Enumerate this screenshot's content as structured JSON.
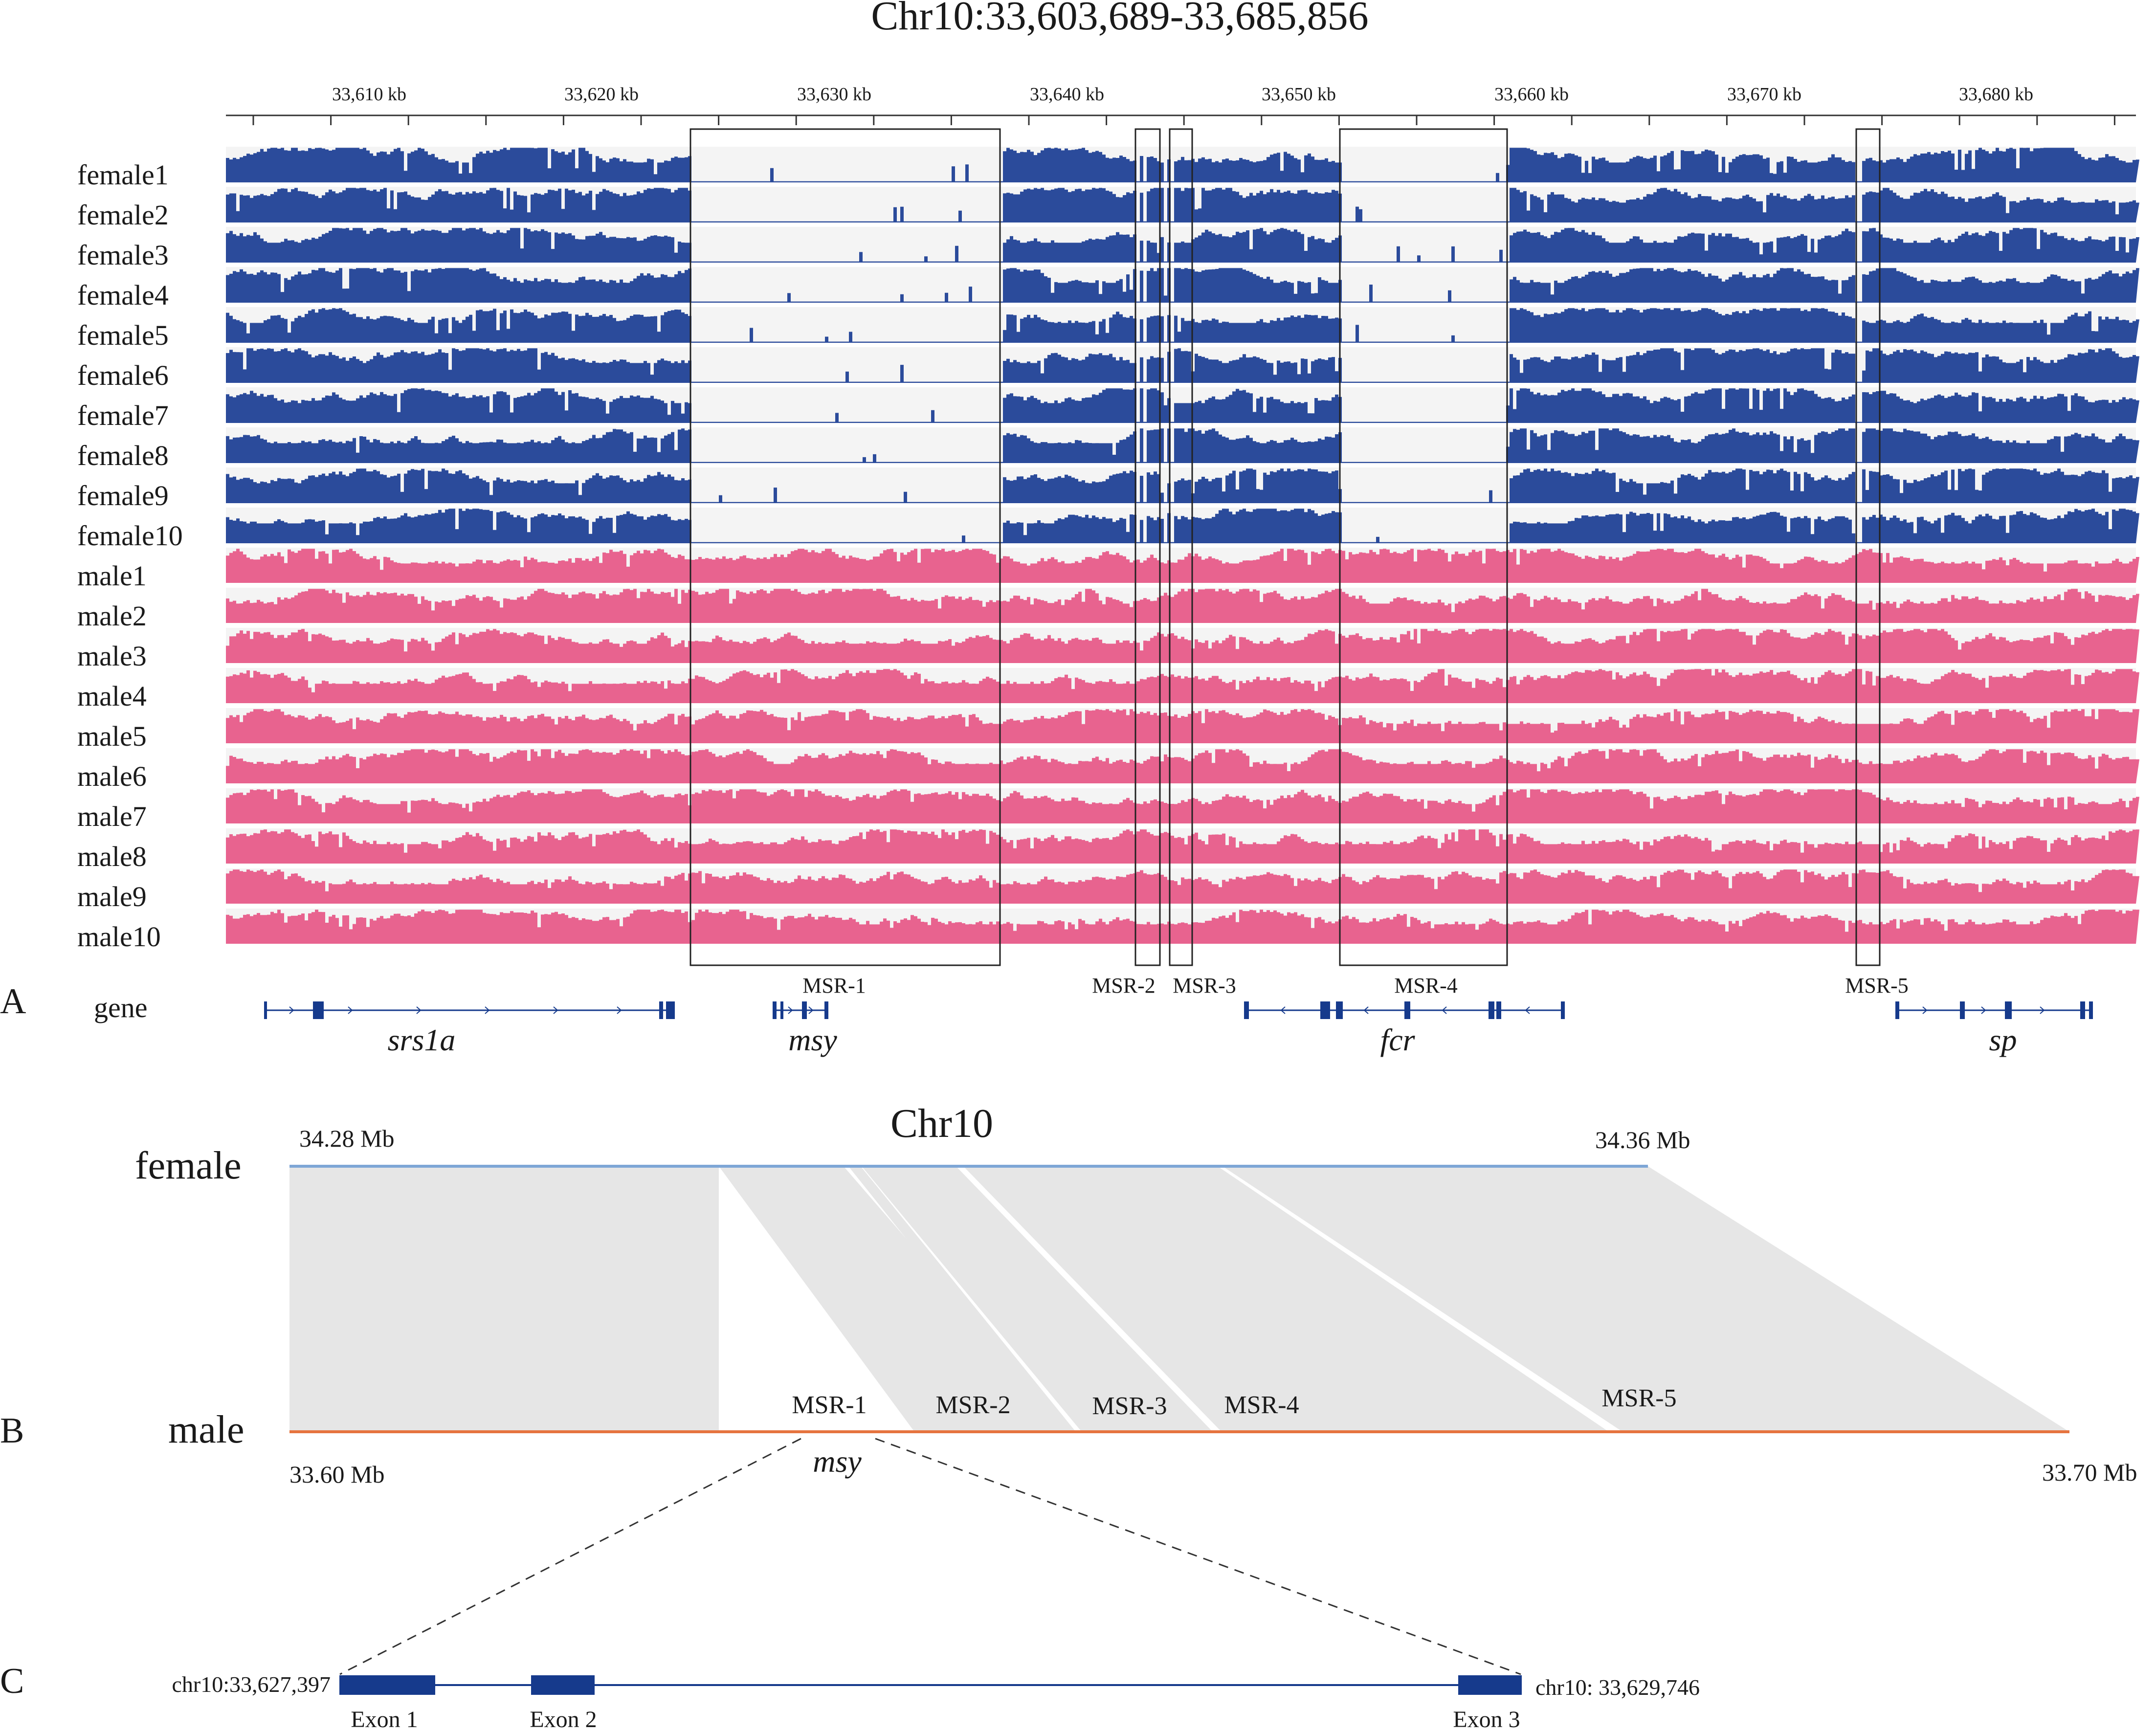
{
  "colors": {
    "female_track": "#2b4b9b",
    "male_track": "#e8638f",
    "track_bg": "#f4f4f4",
    "gene": "#163a8c",
    "female_line": "#7ea6d6",
    "male_line": "#e6743f",
    "synteny": "#e6e6e6"
  },
  "panelA": {
    "label": "A",
    "title": "Chr10:33,603,689-33,685,856",
    "ruler_ticks": [
      "33,610 kb",
      "33,620 kb",
      "33,630 kb",
      "33,640 kb",
      "33,650 kb",
      "33,660 kb",
      "33,670 kb",
      "33,680 kb"
    ],
    "female_tracks": [
      "female1",
      "female2",
      "female3",
      "female4",
      "female5",
      "female6",
      "female7",
      "female8",
      "female9",
      "female10"
    ],
    "male_tracks": [
      "male1",
      "male2",
      "male3",
      "male4",
      "male5",
      "male6",
      "male7",
      "male8",
      "male9",
      "male10"
    ],
    "regions": [
      "MSR-1",
      "MSR-2",
      "MSR-3",
      "MSR-4",
      "MSR-5"
    ],
    "gene_track_label": "gene",
    "genes": [
      "srs1a",
      "msy",
      "fcr",
      "sp"
    ]
  },
  "panelB": {
    "label": "B",
    "title": "Chr10",
    "female_label": "female",
    "male_label": "male",
    "female_start": "34.28 Mb",
    "female_end": "34.36 Mb",
    "male_start": "33.60 Mb",
    "male_end": "33.70 Mb",
    "regions": [
      "MSR-1",
      "MSR-2",
      "MSR-3",
      "MSR-4",
      "MSR-5"
    ],
    "gene": "msy"
  },
  "panelC": {
    "label": "C",
    "start_coord": "chr10:33,627,397",
    "end_coord": "chr10: 33,629,746",
    "exons": [
      "Exon 1",
      "Exon 2",
      "Exon 3"
    ]
  }
}
